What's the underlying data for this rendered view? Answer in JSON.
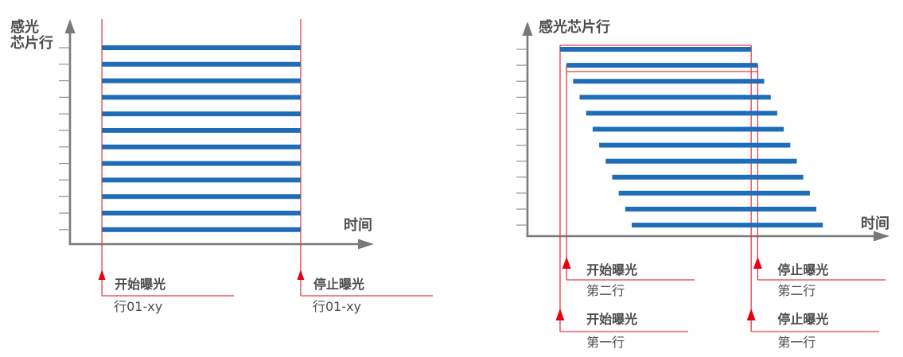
{
  "page": {
    "background": "#ffffff"
  },
  "colors": {
    "bar_blue": "#1f6db7",
    "marker_red": "#e23b4a",
    "arrow_red": "#e60014",
    "axis_gray": "#78797c",
    "tick_gray": "#909090",
    "text_dark": "#4d4d4d"
  },
  "chart_data": [
    {
      "id": "global-shutter-timing",
      "type": "gantt",
      "y_axis_label_lines": [
        "感光",
        "芯片行"
      ],
      "x_axis_label": "时间",
      "x_range": [
        0,
        100
      ],
      "row_count": 12,
      "rows": [
        {
          "row": 1,
          "start": 10.5,
          "end": 75.9
        },
        {
          "row": 2,
          "start": 10.5,
          "end": 75.9
        },
        {
          "row": 3,
          "start": 10.5,
          "end": 75.9
        },
        {
          "row": 4,
          "start": 10.5,
          "end": 75.9
        },
        {
          "row": 5,
          "start": 10.5,
          "end": 75.9
        },
        {
          "row": 6,
          "start": 10.5,
          "end": 75.9
        },
        {
          "row": 7,
          "start": 10.5,
          "end": 75.9
        },
        {
          "row": 8,
          "start": 10.5,
          "end": 75.9
        },
        {
          "row": 9,
          "start": 10.5,
          "end": 75.9
        },
        {
          "row": 10,
          "start": 10.5,
          "end": 75.9
        },
        {
          "row": 11,
          "start": 10.5,
          "end": 75.9
        },
        {
          "row": 12,
          "start": 10.5,
          "end": 75.9
        }
      ],
      "annotations": [
        {
          "kind": "start",
          "label": "开始曝光",
          "sublabel": "行01-xy",
          "t": 10.5
        },
        {
          "kind": "stop",
          "label": "停止曝光",
          "sublabel": "行01-xy",
          "t": 75.9
        }
      ]
    },
    {
      "id": "rolling-shutter-timing",
      "type": "gantt",
      "y_axis_label_lines": [
        "感光芯片行"
      ],
      "x_axis_label": "时间",
      "x_range": [
        0,
        100
      ],
      "row_count": 12,
      "rows": [
        {
          "row": 1,
          "start": 9.0,
          "end": 61.8
        },
        {
          "row": 2,
          "start": 10.8,
          "end": 63.6
        },
        {
          "row": 3,
          "start": 12.6,
          "end": 65.4
        },
        {
          "row": 4,
          "start": 14.4,
          "end": 67.2
        },
        {
          "row": 5,
          "start": 16.2,
          "end": 69.0
        },
        {
          "row": 6,
          "start": 18.0,
          "end": 70.8
        },
        {
          "row": 7,
          "start": 19.8,
          "end": 72.6
        },
        {
          "row": 8,
          "start": 21.6,
          "end": 74.4
        },
        {
          "row": 9,
          "start": 23.4,
          "end": 76.2
        },
        {
          "row": 10,
          "start": 25.2,
          "end": 78.0
        },
        {
          "row": 11,
          "start": 27.0,
          "end": 79.8
        },
        {
          "row": 12,
          "start": 28.8,
          "end": 81.6
        }
      ],
      "annotations": [
        {
          "kind": "start",
          "row": 2,
          "label": "开始曝光",
          "sublabel": "第二行",
          "t": 10.8
        },
        {
          "kind": "start",
          "row": 1,
          "label": "开始曝光",
          "sublabel": "第一行",
          "t": 9.0
        },
        {
          "kind": "stop",
          "row": 2,
          "label": "停止曝光",
          "sublabel": "第二行",
          "t": 63.6
        },
        {
          "kind": "stop",
          "row": 1,
          "label": "停止曝光",
          "sublabel": "第一行",
          "t": 61.8
        }
      ]
    }
  ]
}
